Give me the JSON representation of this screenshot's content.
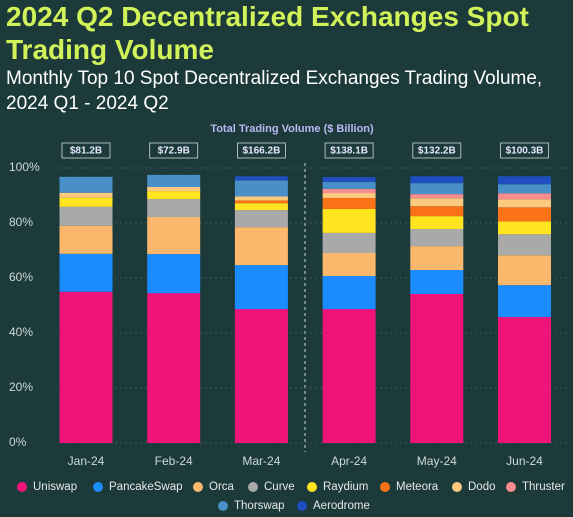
{
  "chart_data": {
    "type": "stacked_bar",
    "title": "2024 Q2 Decentralized Exchanges Spot Trading Volume",
    "subtitle": "Monthly Top 10 Spot Decentralized Exchanges Trading Volume, 2024 Q1 - 2024 Q2",
    "totals": {
      "title": "Total Trading Volume ($ Billion)",
      "values": [
        81.2,
        72.9,
        166.2,
        138.1,
        132.2,
        100.3
      ],
      "value_labels": [
        "$81.2B",
        "$72.9B",
        "$166.2B",
        "$138.1B",
        "$132.2B",
        "$100.3B"
      ]
    },
    "categories": [
      "Jan-24",
      "Feb-24",
      "Mar-24",
      "Apr-24",
      "May-24",
      "Jun-24"
    ],
    "series": [
      {
        "name": "Uniswap",
        "color": "#f0147a",
        "values": [
          55,
          54.5,
          48.7,
          48.7,
          54.2,
          45.8
        ]
      },
      {
        "name": "PancakeSwap",
        "color": "#1a8cff",
        "values": [
          13.8,
          14.2,
          16,
          12,
          8.7,
          11.6
        ]
      },
      {
        "name": "Orca",
        "color": "#fbb86c",
        "values": [
          10.2,
          13.5,
          13.8,
          8.4,
          8.7,
          10.9
        ]
      },
      {
        "name": "Curve",
        "color": "#a9a9a9",
        "values": [
          6.9,
          6.5,
          6.2,
          7.3,
          6.2,
          7.6
        ]
      },
      {
        "name": "Raydium",
        "color": "#ffe41f",
        "values": [
          3.3,
          2.9,
          2.5,
          8.7,
          4.7,
          4.7
        ]
      },
      {
        "name": "Meteora",
        "color": "#f97316",
        "values": [
          0,
          0,
          1,
          4,
          3.6,
          5.1
        ]
      },
      {
        "name": "Dodo",
        "color": "#fcc97e",
        "values": [
          1.8,
          1.5,
          1.5,
          1.8,
          2.9,
          2.9
        ]
      },
      {
        "name": "Thruster",
        "color": "#f98c8c",
        "values": [
          0,
          0,
          0,
          1.5,
          1.5,
          2.2
        ]
      },
      {
        "name": "Thorswap",
        "color": "#4a90c8",
        "values": [
          5.8,
          4.4,
          5.8,
          2.5,
          4,
          3.3
        ]
      },
      {
        "name": "Aerodrome",
        "color": "#1f4fbf",
        "values": [
          0,
          0,
          1.5,
          1.8,
          2.5,
          2.9
        ]
      }
    ],
    "ylim": [
      0,
      100
    ],
    "yticks": [
      {
        "value": 0,
        "label": "0%"
      },
      {
        "value": 20,
        "label": "20%"
      },
      {
        "value": 40,
        "label": "40%"
      },
      {
        "value": 60,
        "label": "60%"
      },
      {
        "value": 80,
        "label": "80%"
      },
      {
        "value": 100,
        "label": "100%"
      }
    ],
    "grid": true
  }
}
